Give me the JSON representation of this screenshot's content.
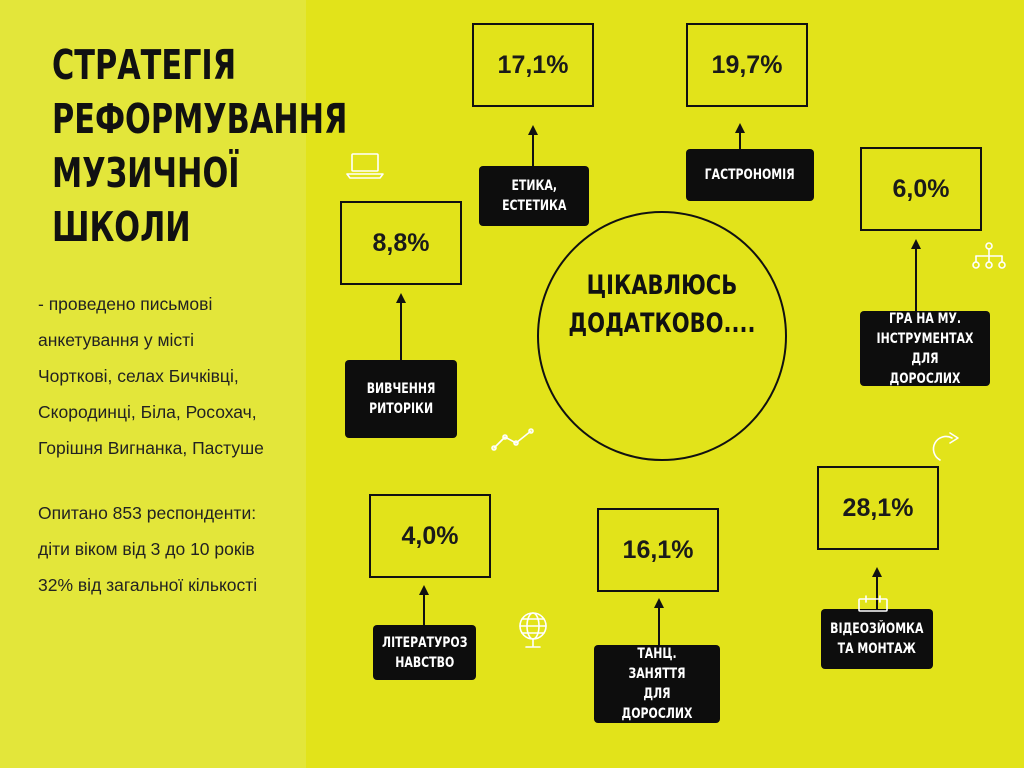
{
  "title": "СТРАТЕГІЯ\nРЕФОРМУВАННЯ\nМУЗИЧНОЇ\nШКОЛИ",
  "description_1": "- проведено письмові\nанкетування у місті\nЧорткові, селах Бичківці,\nСкородинці, Біла, Росохач,\nГорішня Вигнанка, Пастуше",
  "description_2": "Опитано 853 респонденти:\nдіти віком від 3 до 10 років\n32% від загальної кількості",
  "center": "ЦІКАВЛЮСЬ\nДОДАТКОВО....",
  "items": [
    {
      "value": "17,1%",
      "label": "ЕТИКА,\nЕСТЕТИКА"
    },
    {
      "value": "19,7%",
      "label": "ГАСТРОНОМІЯ"
    },
    {
      "value": "6,0%",
      "label": "ГРА НА МУ.\nІНСТРУМЕНТАХ\nДЛЯ ДОРОСЛИХ"
    },
    {
      "value": "8,8%",
      "label": "ВИВЧЕННЯ\nРИТОРІКИ"
    },
    {
      "value": "28,1%",
      "label": "ВІДЕОЗЙОМКА\nТА МОНТАЖ"
    },
    {
      "value": "4,0%",
      "label": "ЛІТЕРАТУРОЗ\nНАВСТВО"
    },
    {
      "value": "16,1%",
      "label": "ТАНЦ. ЗАНЯТТЯ\nДЛЯ ДОРОСЛИХ"
    }
  ],
  "icons": [
    "laptop-icon",
    "sitemap-icon",
    "line-chart-icon",
    "refresh-arrow-icon",
    "globe-icon",
    "calendar-icon"
  ],
  "colors": {
    "background": "#e2e31a",
    "left_panel": "#e3e63a",
    "label_bg": "#0d0d0d"
  }
}
